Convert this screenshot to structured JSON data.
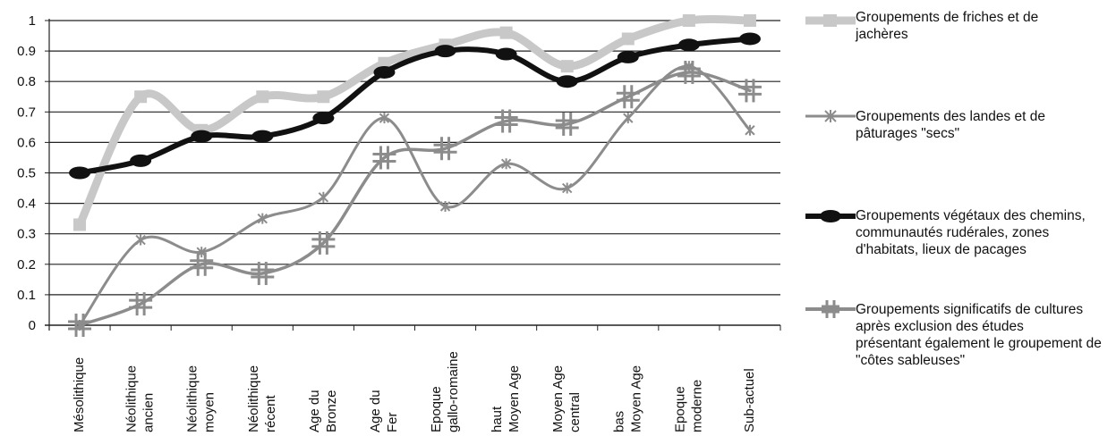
{
  "chart_data": {
    "type": "line",
    "categories": [
      [
        "Mésolithique"
      ],
      [
        "Néolithique",
        "ancien"
      ],
      [
        "Néolithique",
        "moyen"
      ],
      [
        "Néolithique",
        "récent"
      ],
      [
        "Age du",
        "Bronze"
      ],
      [
        "Age du",
        "Fer"
      ],
      [
        "Epoque",
        "gallo-romaine"
      ],
      [
        "haut",
        "Moyen Age"
      ],
      [
        "Moyen Age",
        "central"
      ],
      [
        "bas",
        "Moyen Age"
      ],
      [
        "Epoque",
        "moderne"
      ],
      [
        "Sub-actuel"
      ]
    ],
    "ylim": [
      0,
      1
    ],
    "yticks": [
      "0",
      "0.1",
      "0.2",
      "0.3",
      "0.4",
      "0.5",
      "0.6",
      "0.7",
      "0.8",
      "0.9",
      "1"
    ],
    "grid": true,
    "legend_position": "right",
    "series": [
      {
        "name": "Groupements de friches et de jachères",
        "color": "#c8c8c8",
        "marker": "square",
        "values": [
          0.33,
          0.75,
          0.64,
          0.75,
          0.75,
          0.86,
          0.92,
          0.96,
          0.85,
          0.94,
          1.0,
          1.0
        ]
      },
      {
        "name": "Groupements des landes et de pâturages \"secs\"",
        "color": "#8c8c8c",
        "marker": "star",
        "values": [
          0.0,
          0.28,
          0.24,
          0.35,
          0.42,
          0.68,
          0.39,
          0.53,
          0.45,
          0.68,
          0.85,
          0.64
        ]
      },
      {
        "name": "Groupements végétaux des chemins, communautés rudérales, zones d'habitats, lieux de pacages",
        "color": "#111111",
        "marker": "ellipse",
        "values": [
          0.5,
          0.54,
          0.62,
          0.62,
          0.68,
          0.83,
          0.9,
          0.89,
          0.8,
          0.88,
          0.92,
          0.94
        ]
      },
      {
        "name": "Groupements significatifs de cultures après exclusion des études présentant également le groupement de \"côtes sableuses\"",
        "color": "#8c8c8c",
        "marker": "plus",
        "values": [
          0.0,
          0.07,
          0.2,
          0.17,
          0.27,
          0.55,
          0.58,
          0.67,
          0.66,
          0.75,
          0.83,
          0.77
        ]
      }
    ]
  },
  "legend": {
    "items": [
      {
        "lines": [
          "Groupements de friches et de",
          "jachères"
        ]
      },
      {
        "lines": [
          "Groupements des landes et de",
          "pâturages \"secs\""
        ]
      },
      {
        "lines": [
          "Groupements végétaux des chemins,",
          "communautés rudérales, zones",
          "d'habitats, lieux de pacages"
        ]
      },
      {
        "lines": [
          "Groupements significatifs de cultures",
          "après exclusion des études",
          "présentant également le groupement de",
          "\"côtes sableuses\""
        ]
      }
    ]
  }
}
